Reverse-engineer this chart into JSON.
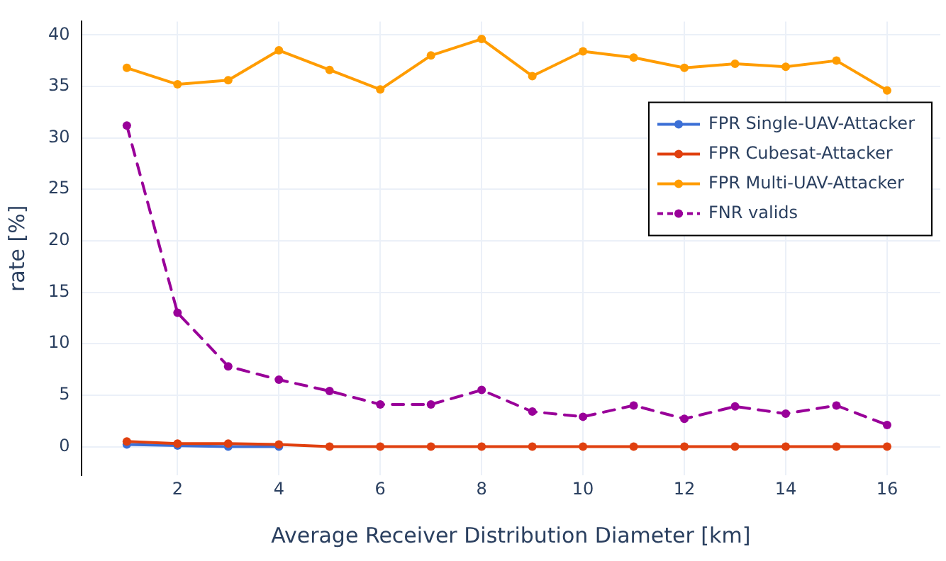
{
  "chart_data": {
    "type": "line",
    "xlabel": "Average Receiver Distribution Diameter [km]",
    "ylabel": "rate [%]",
    "x": [
      1,
      2,
      3,
      4,
      5,
      6,
      7,
      8,
      9,
      10,
      11,
      12,
      13,
      14,
      15,
      16
    ],
    "xlim": [
      0.1,
      17.05
    ],
    "xticks": [
      2,
      4,
      6,
      8,
      10,
      12,
      14,
      16
    ],
    "ylim": [
      -2.8,
      41.3
    ],
    "yticks": [
      0,
      5,
      10,
      15,
      20,
      25,
      30,
      35,
      40
    ],
    "grid": true,
    "legend": "top right",
    "marker": "circle",
    "series": [
      {
        "name": "FPR Single-UAV-Attacker",
        "color": "#3b6fd6",
        "values": [
          0.2,
          0.1,
          0,
          0,
          null,
          null,
          null,
          null,
          null,
          null,
          null,
          null,
          null,
          null,
          null,
          null
        ]
      },
      {
        "name": "FPR Cubesat-Attacker",
        "color": "#e0400f",
        "values": [
          0.5,
          0.3,
          0.3,
          0.2,
          0,
          0,
          0,
          0,
          0,
          0,
          0,
          0,
          0,
          0,
          0,
          0
        ]
      },
      {
        "name": "FPR Multi-UAV-Attacker",
        "color": "#ff9c00",
        "values": [
          36.8,
          35.2,
          35.6,
          38.5,
          36.6,
          34.7,
          38.0,
          39.6,
          36.0,
          38.4,
          37.8,
          36.8,
          37.2,
          36.9,
          37.5,
          34.6
        ]
      },
      {
        "name": "FNR valids",
        "color": "#990099",
        "line_style": "dashed",
        "values": [
          31.2,
          13.0,
          7.8,
          6.5,
          5.4,
          4.1,
          4.1,
          5.5,
          3.4,
          2.9,
          4.0,
          2.7,
          3.9,
          3.2,
          4.0,
          2.1
        ]
      }
    ]
  }
}
